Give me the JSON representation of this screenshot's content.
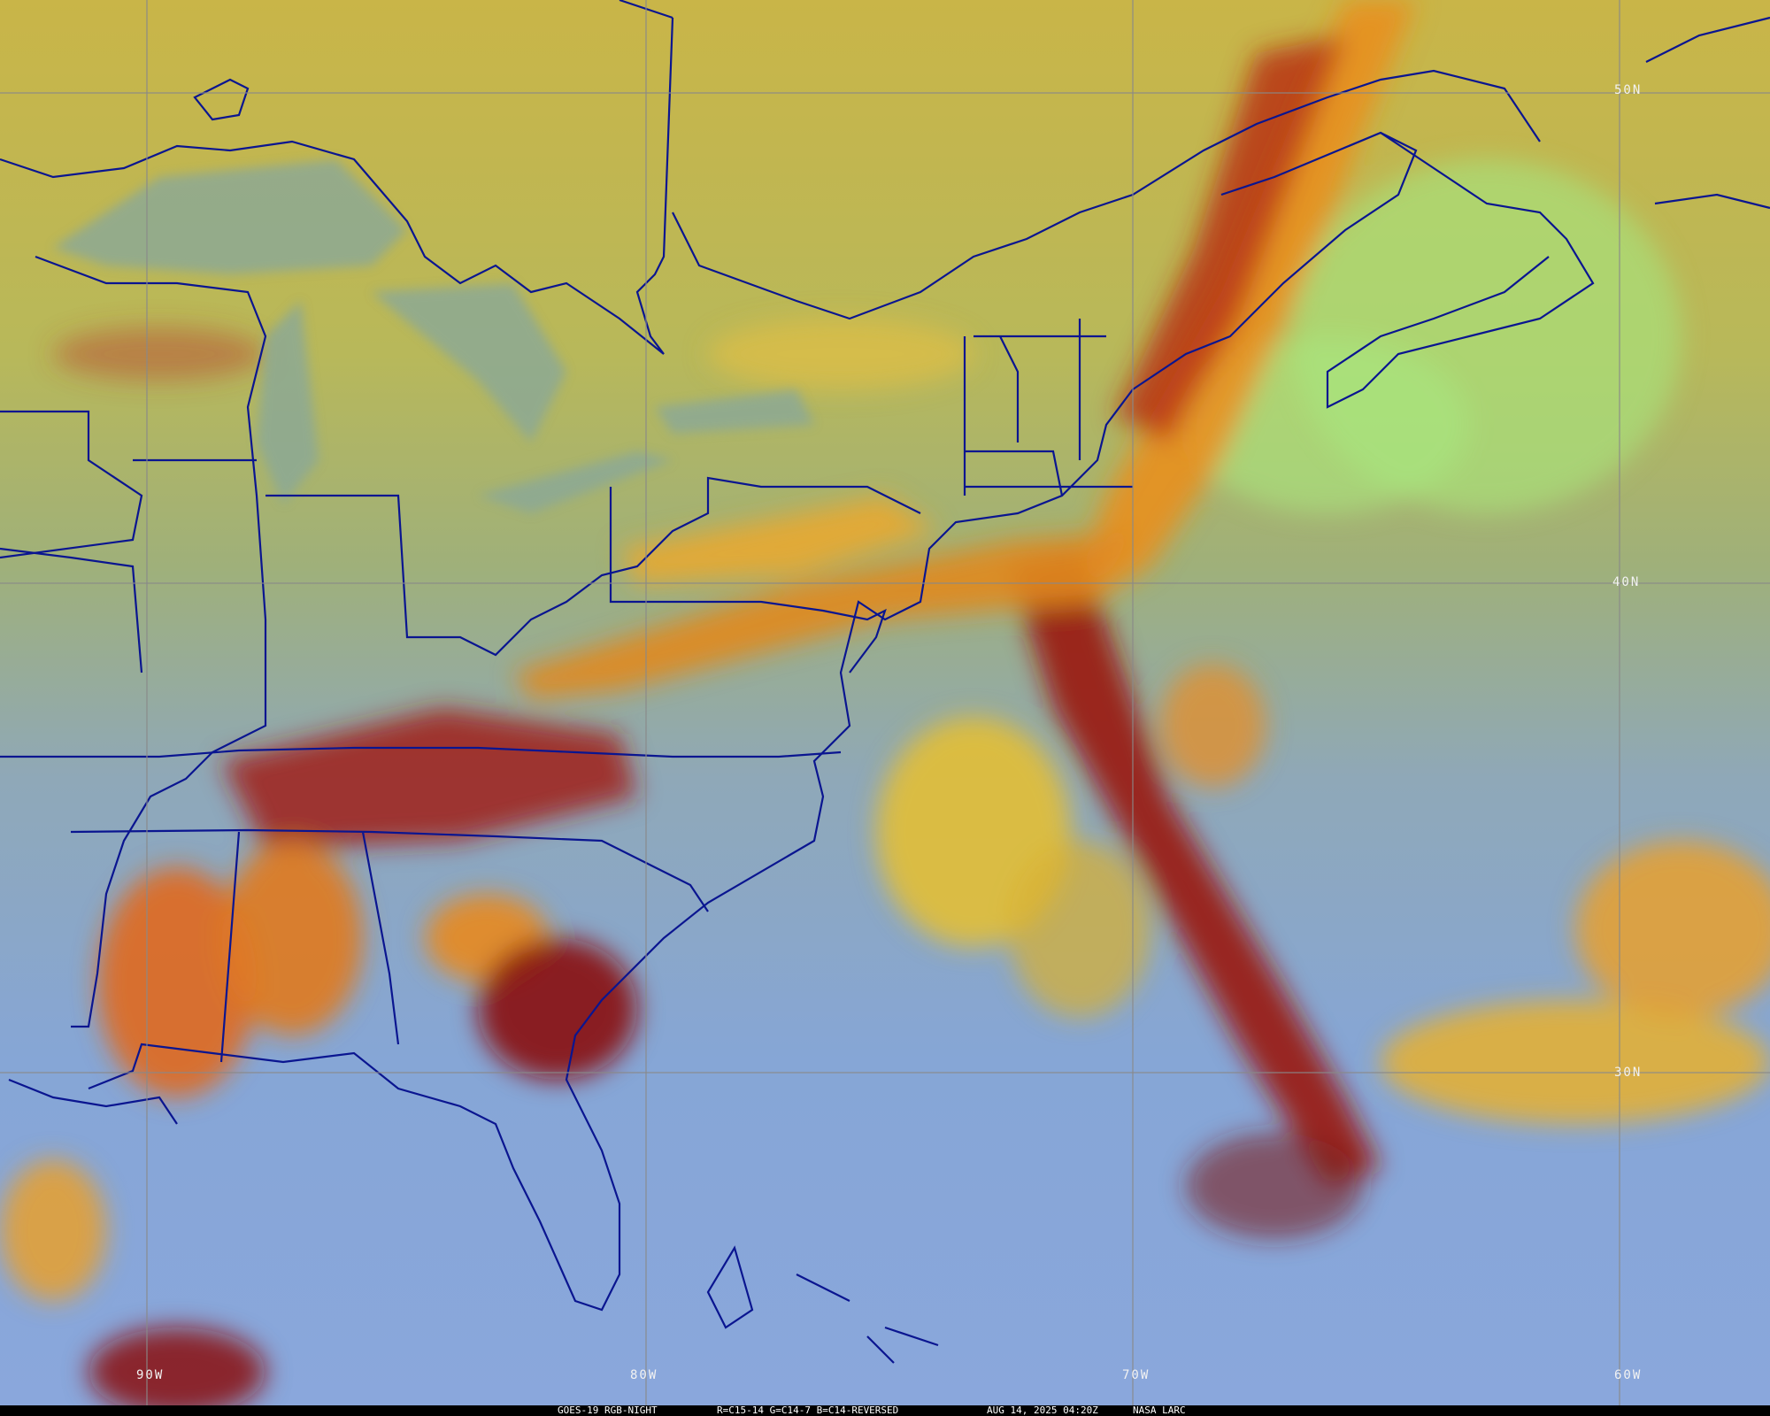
{
  "caption": {
    "satellite": "GOES-19 RGB-NIGHT",
    "channels": "R=C15-14 G=C14-7 B=C14-REVERSED",
    "datetime": "AUG 14, 2025 04:20Z",
    "source": "NASA LARC"
  },
  "grid_labels": {
    "lat": [
      "50N",
      "40N",
      "30N"
    ],
    "lon": [
      "90W",
      "80W",
      "70W",
      "60W"
    ]
  },
  "colors": {
    "border": "#0a1590",
    "grid": "#8a8a8a",
    "cloud_high": "#e8a020",
    "cloud_thick": "#8a1010",
    "clear_land": "#c9b548",
    "ocean": "#86a6d6"
  }
}
